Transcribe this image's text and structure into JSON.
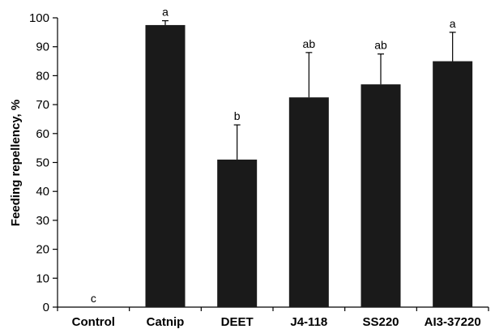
{
  "chart_data": {
    "type": "bar",
    "categories": [
      "Control",
      "Catnip",
      "DEET",
      "J4-118",
      "SS220",
      "AI3-37220"
    ],
    "values": [
      0,
      97.5,
      51,
      72.5,
      77,
      85
    ],
    "error_upper": [
      0,
      1.5,
      12,
      15.5,
      10.5,
      10
    ],
    "significance_letters": [
      "c",
      "a",
      "b",
      "ab",
      "ab",
      "a"
    ],
    "ylabel": "Feeding repellency, %",
    "xlabel": "",
    "ylim": [
      0,
      100
    ],
    "yticks": [
      0,
      10,
      20,
      30,
      40,
      50,
      60,
      70,
      80,
      90,
      100
    ],
    "bar_color": "#1a1a1a",
    "grid": false
  }
}
